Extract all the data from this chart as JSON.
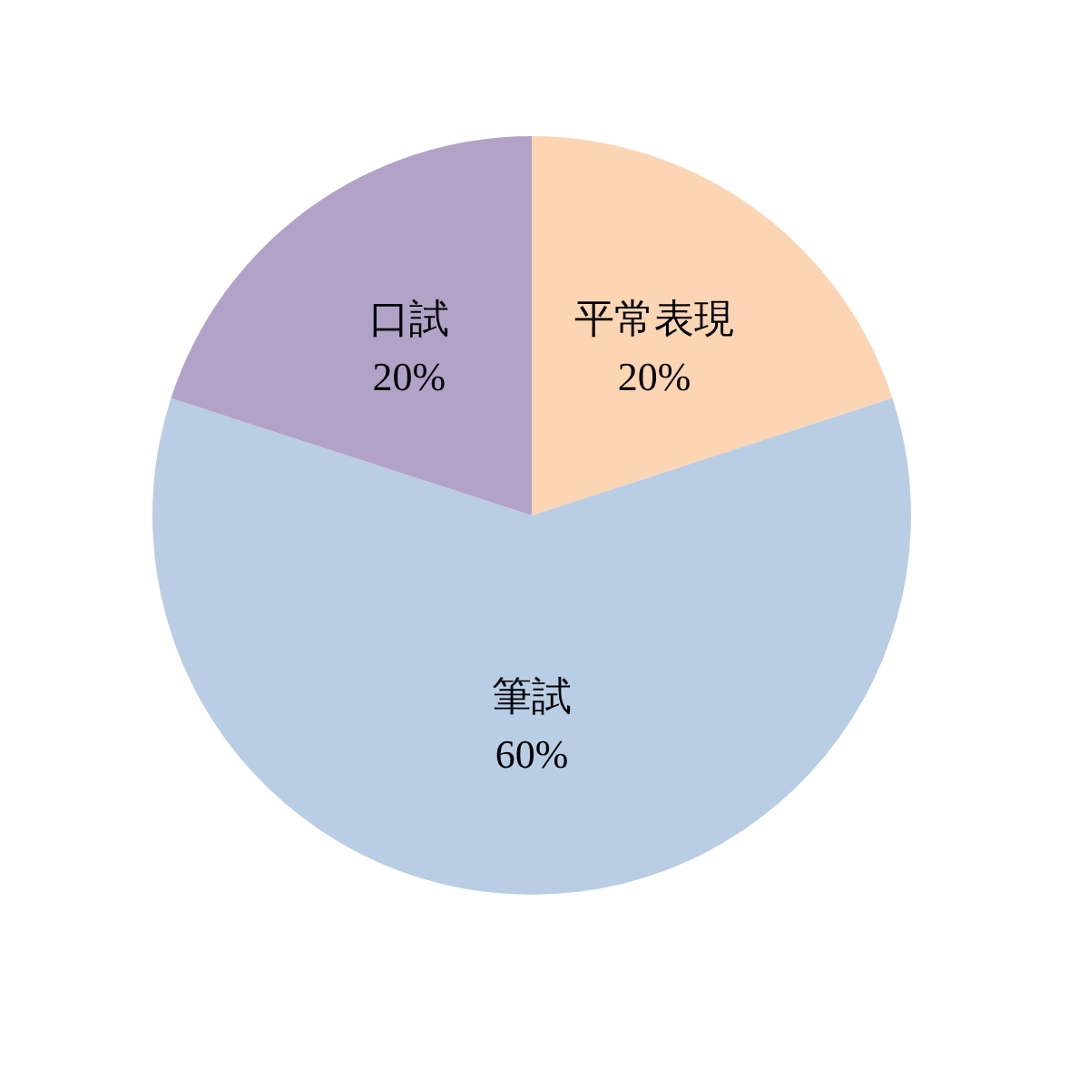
{
  "chart_data": {
    "type": "pie",
    "categories": [
      "平常表現",
      "筆試",
      "口試"
    ],
    "values": [
      20,
      60,
      20
    ],
    "value_labels": [
      "20%",
      "60%",
      "20%"
    ],
    "colors": [
      "#fcd5b5",
      "#b9cde5",
      "#b3a2c7"
    ]
  }
}
